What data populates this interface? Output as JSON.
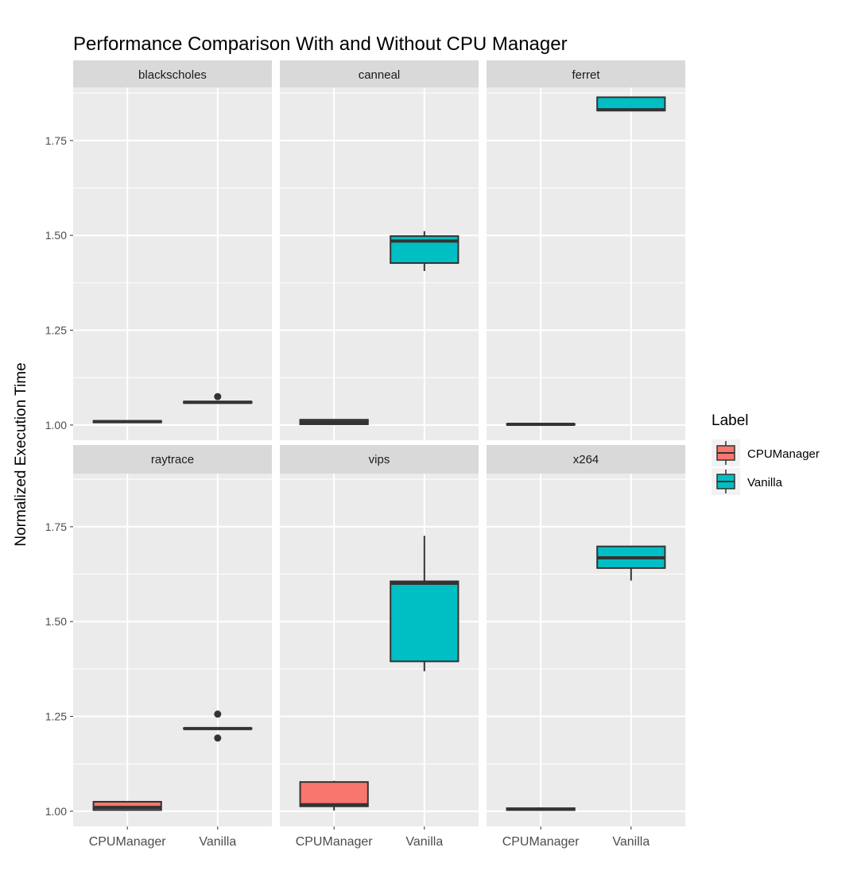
{
  "chart_data": {
    "type": "boxplot",
    "title": "Performance Comparison With and Without CPU Manager",
    "xlabel": "",
    "ylabel": "Normalized Execution Time",
    "ylim": [
      0.96,
      1.89
    ],
    "yticks": [
      "1.00",
      "1.25",
      "1.50",
      "1.75"
    ],
    "ytick_values": [
      1.0,
      1.25,
      1.5,
      1.75
    ],
    "categories": [
      "CPUManager",
      "Vanilla"
    ],
    "grid": true,
    "legend": {
      "title": "Label",
      "placement": "right",
      "entries": [
        {
          "name": "CPUManager",
          "color": "#F8766D"
        },
        {
          "name": "Vanilla",
          "color": "#00BFC4"
        }
      ]
    },
    "colors": {
      "panel_bg": "#EBEBEB",
      "strip_bg": "#D9D9D9",
      "grid": "#FFFFFF",
      "box_line": "#333333"
    },
    "facets": [
      {
        "name": "blackscholes",
        "boxes": [
          {
            "label": "CPUManager",
            "lower": 1.007,
            "q1": 1.007,
            "median": 1.009,
            "q3": 1.011,
            "upper": 1.011,
            "outliers": []
          },
          {
            "label": "Vanilla",
            "lower": 1.058,
            "q1": 1.058,
            "median": 1.06,
            "q3": 1.062,
            "upper": 1.062,
            "outliers": [
              1.075
            ]
          }
        ]
      },
      {
        "name": "canneal",
        "boxes": [
          {
            "label": "CPUManager",
            "lower": 1.002,
            "q1": 1.002,
            "median": 1.008,
            "q3": 1.014,
            "upper": 1.014,
            "outliers": []
          },
          {
            "label": "Vanilla",
            "lower": 1.406,
            "q1": 1.427,
            "median": 1.485,
            "q3": 1.498,
            "upper": 1.511,
            "outliers": []
          }
        ]
      },
      {
        "name": "ferret",
        "boxes": [
          {
            "label": "CPUManager",
            "lower": 1.001,
            "q1": 1.001,
            "median": 1.002,
            "q3": 1.003,
            "upper": 1.003,
            "outliers": []
          },
          {
            "label": "Vanilla",
            "lower": 1.828,
            "q1": 1.829,
            "median": 1.831,
            "q3": 1.864,
            "upper": 1.864,
            "outliers": []
          }
        ]
      },
      {
        "name": "raytrace",
        "boxes": [
          {
            "label": "CPUManager",
            "lower": 1.003,
            "q1": 1.003,
            "median": 1.01,
            "q3": 1.025,
            "upper": 1.025,
            "outliers": []
          },
          {
            "label": "Vanilla",
            "lower": 1.217,
            "q1": 1.217,
            "median": 1.218,
            "q3": 1.219,
            "upper": 1.219,
            "outliers": [
              1.256,
              1.193
            ]
          }
        ]
      },
      {
        "name": "vips",
        "boxes": [
          {
            "label": "CPUManager",
            "lower": 1.002,
            "q1": 1.013,
            "median": 1.017,
            "q3": 1.077,
            "upper": 1.08,
            "outliers": []
          },
          {
            "label": "Vanilla",
            "lower": 1.369,
            "q1": 1.395,
            "median": 1.601,
            "q3": 1.606,
            "upper": 1.726,
            "outliers": []
          }
        ]
      },
      {
        "name": "x264",
        "boxes": [
          {
            "label": "CPUManager",
            "lower": 1.003,
            "q1": 1.003,
            "median": 1.005,
            "q3": 1.008,
            "upper": 1.008,
            "outliers": []
          },
          {
            "label": "Vanilla",
            "lower": 1.608,
            "q1": 1.641,
            "median": 1.668,
            "q3": 1.698,
            "upper": 1.698,
            "outliers": []
          }
        ]
      }
    ]
  }
}
